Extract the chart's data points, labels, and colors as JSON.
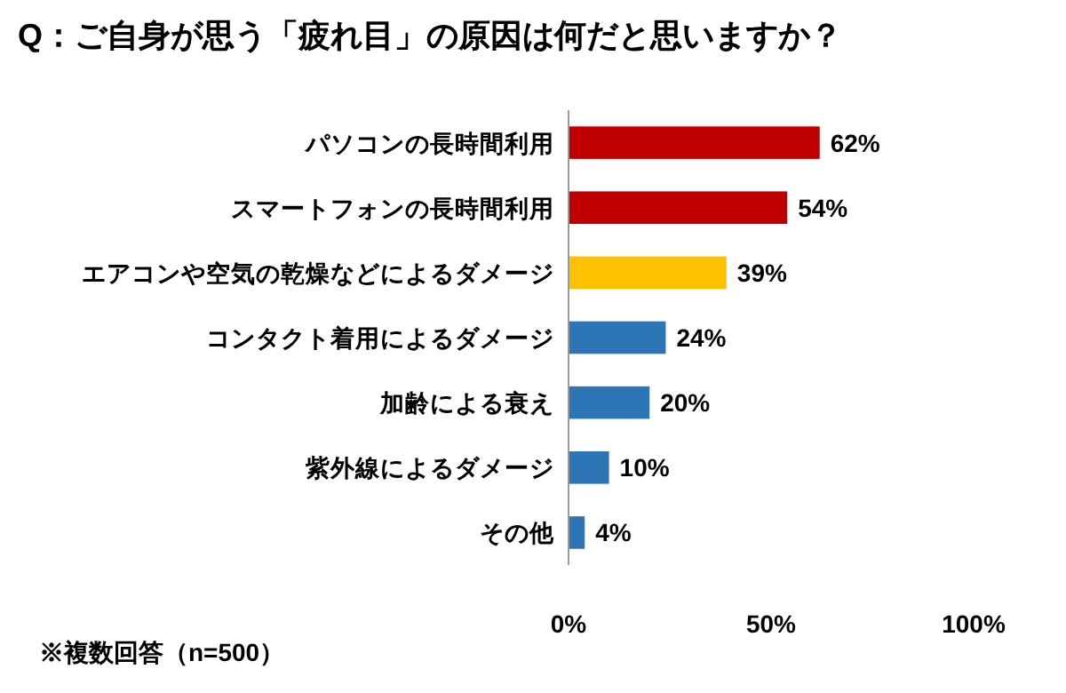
{
  "chart_data": {
    "type": "bar",
    "orientation": "horizontal",
    "title": "Q：ご自身が思う「疲れ目」の原因は何だと思いますか？",
    "categories": [
      "パソコンの長時間利用",
      "スマートフォンの長時間利用",
      "エアコンや空気の乾燥などによるダメージ",
      "コンタクト着用によるダメージ",
      "加齢による衰え",
      "紫外線によるダメージ",
      "その他"
    ],
    "values": [
      62,
      54,
      39,
      24,
      20,
      10,
      4
    ],
    "colors": [
      "#c00000",
      "#c00000",
      "#ffc000",
      "#2e75b6",
      "#2e75b6",
      "#2e75b6",
      "#2e75b6"
    ],
    "value_labels": [
      "62%",
      "54%",
      "39%",
      "24%",
      "20%",
      "10%",
      "4%"
    ],
    "xlim": [
      0,
      100
    ],
    "xticks": [
      {
        "value": 0,
        "label": "0%"
      },
      {
        "value": 50,
        "label": "50%"
      },
      {
        "value": 100,
        "label": "100%"
      }
    ],
    "annotations": [
      "※複数回答（n=500）"
    ]
  }
}
